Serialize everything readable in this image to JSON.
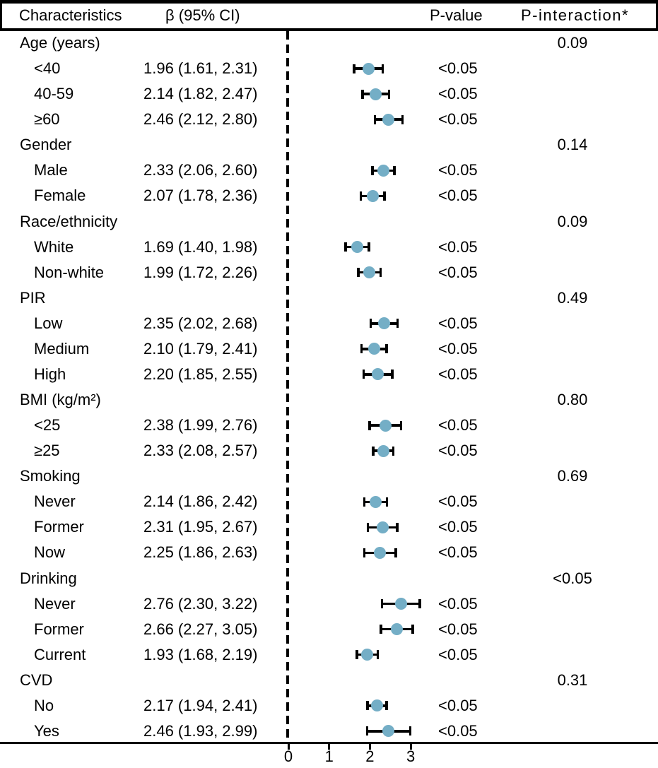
{
  "figure": {
    "header": {
      "characteristics": "Characteristics",
      "beta_ci": "β (95% CI)",
      "p_value": "P-value",
      "p_interaction": "P-interaction*"
    },
    "colors": {
      "marker": "#74AEC6",
      "line": "#000000",
      "background": "#FFFFFF"
    }
  },
  "chart_data": {
    "type": "forest",
    "title": "",
    "xlabel": "",
    "x_ticks": [
      "0",
      "1",
      "2",
      "3"
    ],
    "x_tick_values": [
      0,
      1,
      2,
      3
    ],
    "reference_line_x": 0,
    "legend": "none",
    "marker_color": "#74AEC6",
    "groups": [
      {
        "label": "Age (years)",
        "p_interaction": "0.09",
        "rows": [
          {
            "label": "<40",
            "beta": 1.96,
            "ci_low": 1.61,
            "ci_high": 2.31,
            "beta_ci": "1.96 (1.61, 2.31)",
            "p_value": "<0.05"
          },
          {
            "label": "40-59",
            "beta": 2.14,
            "ci_low": 1.82,
            "ci_high": 2.47,
            "beta_ci": "2.14 (1.82, 2.47)",
            "p_value": "<0.05"
          },
          {
            "label": "≥60",
            "beta": 2.46,
            "ci_low": 2.12,
            "ci_high": 2.8,
            "beta_ci": "2.46 (2.12, 2.80)",
            "p_value": "<0.05"
          }
        ]
      },
      {
        "label": "Gender",
        "p_interaction": "0.14",
        "rows": [
          {
            "label": "Male",
            "beta": 2.33,
            "ci_low": 2.06,
            "ci_high": 2.6,
            "beta_ci": "2.33 (2.06, 2.60)",
            "p_value": "<0.05"
          },
          {
            "label": "Female",
            "beta": 2.07,
            "ci_low": 1.78,
            "ci_high": 2.36,
            "beta_ci": "2.07 (1.78, 2.36)",
            "p_value": "<0.05"
          }
        ]
      },
      {
        "label": "Race/ethnicity",
        "p_interaction": "0.09",
        "rows": [
          {
            "label": "White",
            "beta": 1.69,
            "ci_low": 1.4,
            "ci_high": 1.98,
            "beta_ci": "1.69 (1.40, 1.98)",
            "p_value": "<0.05"
          },
          {
            "label": "Non-white",
            "beta": 1.99,
            "ci_low": 1.72,
            "ci_high": 2.26,
            "beta_ci": "1.99 (1.72, 2.26)",
            "p_value": "<0.05"
          }
        ]
      },
      {
        "label": "PIR",
        "p_interaction": "0.49",
        "rows": [
          {
            "label": "Low",
            "beta": 2.35,
            "ci_low": 2.02,
            "ci_high": 2.68,
            "beta_ci": "2.35 (2.02, 2.68)",
            "p_value": "<0.05"
          },
          {
            "label": "Medium",
            "beta": 2.1,
            "ci_low": 1.79,
            "ci_high": 2.41,
            "beta_ci": "2.10 (1.79, 2.41)",
            "p_value": "<0.05"
          },
          {
            "label": "High",
            "beta": 2.2,
            "ci_low": 1.85,
            "ci_high": 2.55,
            "beta_ci": "2.20 (1.85, 2.55)",
            "p_value": "<0.05"
          }
        ]
      },
      {
        "label": "BMI (kg/m²)",
        "p_interaction": "0.80",
        "rows": [
          {
            "label": "<25",
            "beta": 2.38,
            "ci_low": 1.99,
            "ci_high": 2.76,
            "beta_ci": "2.38 (1.99, 2.76)",
            "p_value": "<0.05"
          },
          {
            "label": "≥25",
            "beta": 2.33,
            "ci_low": 2.08,
            "ci_high": 2.57,
            "beta_ci": "2.33 (2.08, 2.57)",
            "p_value": "<0.05"
          }
        ]
      },
      {
        "label": "Smoking",
        "p_interaction": "0.69",
        "rows": [
          {
            "label": "Never",
            "beta": 2.14,
            "ci_low": 1.86,
            "ci_high": 2.42,
            "beta_ci": "2.14 (1.86, 2.42)",
            "p_value": "<0.05"
          },
          {
            "label": "Former",
            "beta": 2.31,
            "ci_low": 1.95,
            "ci_high": 2.67,
            "beta_ci": "2.31 (1.95, 2.67)",
            "p_value": "<0.05"
          },
          {
            "label": "Now",
            "beta": 2.25,
            "ci_low": 1.86,
            "ci_high": 2.63,
            "beta_ci": "2.25 (1.86, 2.63)",
            "p_value": "<0.05"
          }
        ]
      },
      {
        "label": "Drinking",
        "p_interaction": "<0.05",
        "rows": [
          {
            "label": "Never",
            "beta": 2.76,
            "ci_low": 2.3,
            "ci_high": 3.22,
            "beta_ci": "2.76 (2.30, 3.22)",
            "p_value": "<0.05"
          },
          {
            "label": "Former",
            "beta": 2.66,
            "ci_low": 2.27,
            "ci_high": 3.05,
            "beta_ci": "2.66 (2.27, 3.05)",
            "p_value": "<0.05"
          },
          {
            "label": "Current",
            "beta": 1.93,
            "ci_low": 1.68,
            "ci_high": 2.19,
            "beta_ci": "1.93 (1.68, 2.19)",
            "p_value": "<0.05"
          }
        ]
      },
      {
        "label": "CVD",
        "p_interaction": "0.31",
        "rows": [
          {
            "label": "No",
            "beta": 2.17,
            "ci_low": 1.94,
            "ci_high": 2.41,
            "beta_ci": "2.17 (1.94, 2.41)",
            "p_value": "<0.05"
          },
          {
            "label": "Yes",
            "beta": 2.46,
            "ci_low": 1.93,
            "ci_high": 2.99,
            "beta_ci": "2.46 (1.93, 2.99)",
            "p_value": "<0.05"
          }
        ]
      }
    ]
  }
}
